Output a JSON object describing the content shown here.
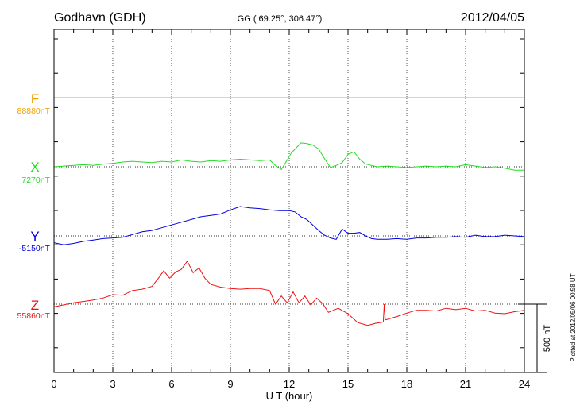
{
  "chart_data": {
    "type": "line",
    "title": "Godhavn (GDH)",
    "subtitle": "GG ( 69.25°, 306.47°)",
    "date": "2012/04/05",
    "xlabel": "U T (hour)",
    "xlim": [
      0,
      24
    ],
    "xticks": [
      0,
      3,
      6,
      9,
      12,
      15,
      18,
      21,
      24
    ],
    "grid": true,
    "scale_bar": {
      "label": "500 nT",
      "value_nT": 500
    },
    "plotted_note": "Plotted at 2012/05/06 00:58 UT",
    "series": [
      {
        "name": "F",
        "baseline_label": "88880nT",
        "baseline_nT": 88880,
        "color": "#f0a000",
        "x": [
          0,
          24
        ],
        "y": [
          88880,
          88880
        ]
      },
      {
        "name": "X",
        "baseline_label": "7270nT",
        "baseline_nT": 7270,
        "color": "#22dd22",
        "x": [
          0,
          0.5,
          1,
          1.5,
          2,
          2.5,
          3,
          3.5,
          4,
          4.5,
          5,
          5.5,
          6,
          6.5,
          7,
          7.5,
          8,
          8.5,
          9,
          9.5,
          10,
          10.5,
          11,
          11.3,
          11.6,
          11.9,
          12.1,
          12.3,
          12.6,
          12.9,
          13.2,
          13.5,
          13.8,
          14.1,
          14.4,
          14.7,
          15,
          15.3,
          15.6,
          15.9,
          16.2,
          16.5,
          17,
          17.5,
          18,
          18.5,
          19,
          19.5,
          20,
          20.5,
          21,
          21.5,
          22,
          22.5,
          23,
          23.5,
          24
        ],
        "y": [
          7270,
          7275,
          7280,
          7285,
          7280,
          7290,
          7295,
          7305,
          7310,
          7305,
          7300,
          7310,
          7305,
          7320,
          7310,
          7305,
          7315,
          7310,
          7320,
          7325,
          7320,
          7315,
          7320,
          7280,
          7250,
          7320,
          7370,
          7400,
          7445,
          7440,
          7430,
          7400,
          7330,
          7265,
          7280,
          7300,
          7360,
          7380,
          7325,
          7290,
          7280,
          7270,
          7275,
          7270,
          7265,
          7270,
          7275,
          7270,
          7275,
          7270,
          7285,
          7275,
          7265,
          7270,
          7260,
          7245,
          7245
        ]
      },
      {
        "name": "Y",
        "baseline_label": "-5150nT",
        "baseline_nT": -5150,
        "color": "#0000dd",
        "x": [
          0,
          0.5,
          1,
          1.5,
          2,
          2.5,
          3,
          3.5,
          4,
          4.5,
          5,
          5.5,
          6,
          6.5,
          7,
          7.5,
          8,
          8.5,
          9,
          9.5,
          10,
          10.5,
          11,
          11.5,
          12,
          12.3,
          12.6,
          12.9,
          13.2,
          13.5,
          13.8,
          14.1,
          14.4,
          14.7,
          15,
          15.3,
          15.6,
          15.9,
          16.2,
          16.5,
          17,
          17.5,
          18,
          18.5,
          19,
          19.5,
          20,
          20.5,
          21,
          21.5,
          22,
          22.5,
          23,
          23.5,
          24
        ],
        "y": [
          -5200,
          -5215,
          -5205,
          -5190,
          -5180,
          -5170,
          -5165,
          -5160,
          -5140,
          -5120,
          -5110,
          -5090,
          -5070,
          -5050,
          -5030,
          -5010,
          -5000,
          -4990,
          -4960,
          -4935,
          -4945,
          -4950,
          -4960,
          -4965,
          -4965,
          -4975,
          -5010,
          -5030,
          -5070,
          -5110,
          -5145,
          -5165,
          -5175,
          -5100,
          -5130,
          -5130,
          -5125,
          -5150,
          -5170,
          -5175,
          -5175,
          -5170,
          -5175,
          -5165,
          -5165,
          -5160,
          -5160,
          -5155,
          -5160,
          -5145,
          -5155,
          -5155,
          -5145,
          -5150,
          -5155
        ]
      },
      {
        "name": "Z",
        "baseline_label": "55860nT",
        "baseline_nT": 55860,
        "color": "#ee1111",
        "x": [
          0,
          0.5,
          1,
          1.5,
          2,
          2.5,
          3,
          3.5,
          4,
          4.5,
          5,
          5.3,
          5.6,
          5.9,
          6.2,
          6.5,
          6.8,
          7.1,
          7.4,
          7.7,
          8,
          8.5,
          9,
          9.5,
          10,
          10.5,
          11,
          11.3,
          11.6,
          11.9,
          12.2,
          12.5,
          12.8,
          13.1,
          13.4,
          13.7,
          14,
          14.5,
          15,
          15.5,
          16,
          16.4,
          16.8,
          16.85,
          16.9,
          17.5,
          18,
          18.5,
          19,
          19.5,
          20,
          20.5,
          21,
          21.5,
          22,
          22.5,
          23,
          23.5,
          24
        ],
        "y": [
          55840,
          55855,
          55870,
          55880,
          55890,
          55905,
          55930,
          55925,
          55960,
          55970,
          55990,
          56045,
          56105,
          56050,
          56095,
          56115,
          56175,
          56090,
          56125,
          56050,
          56005,
          55985,
          55975,
          55970,
          55975,
          55975,
          55960,
          55860,
          55920,
          55870,
          55950,
          55870,
          55920,
          55855,
          55905,
          55865,
          55800,
          55830,
          55790,
          55725,
          55705,
          55720,
          55730,
          55860,
          55745,
          55770,
          55795,
          55815,
          55815,
          55810,
          55830,
          55820,
          55830,
          55810,
          55815,
          55795,
          55790,
          55805,
          55815
        ]
      }
    ]
  }
}
